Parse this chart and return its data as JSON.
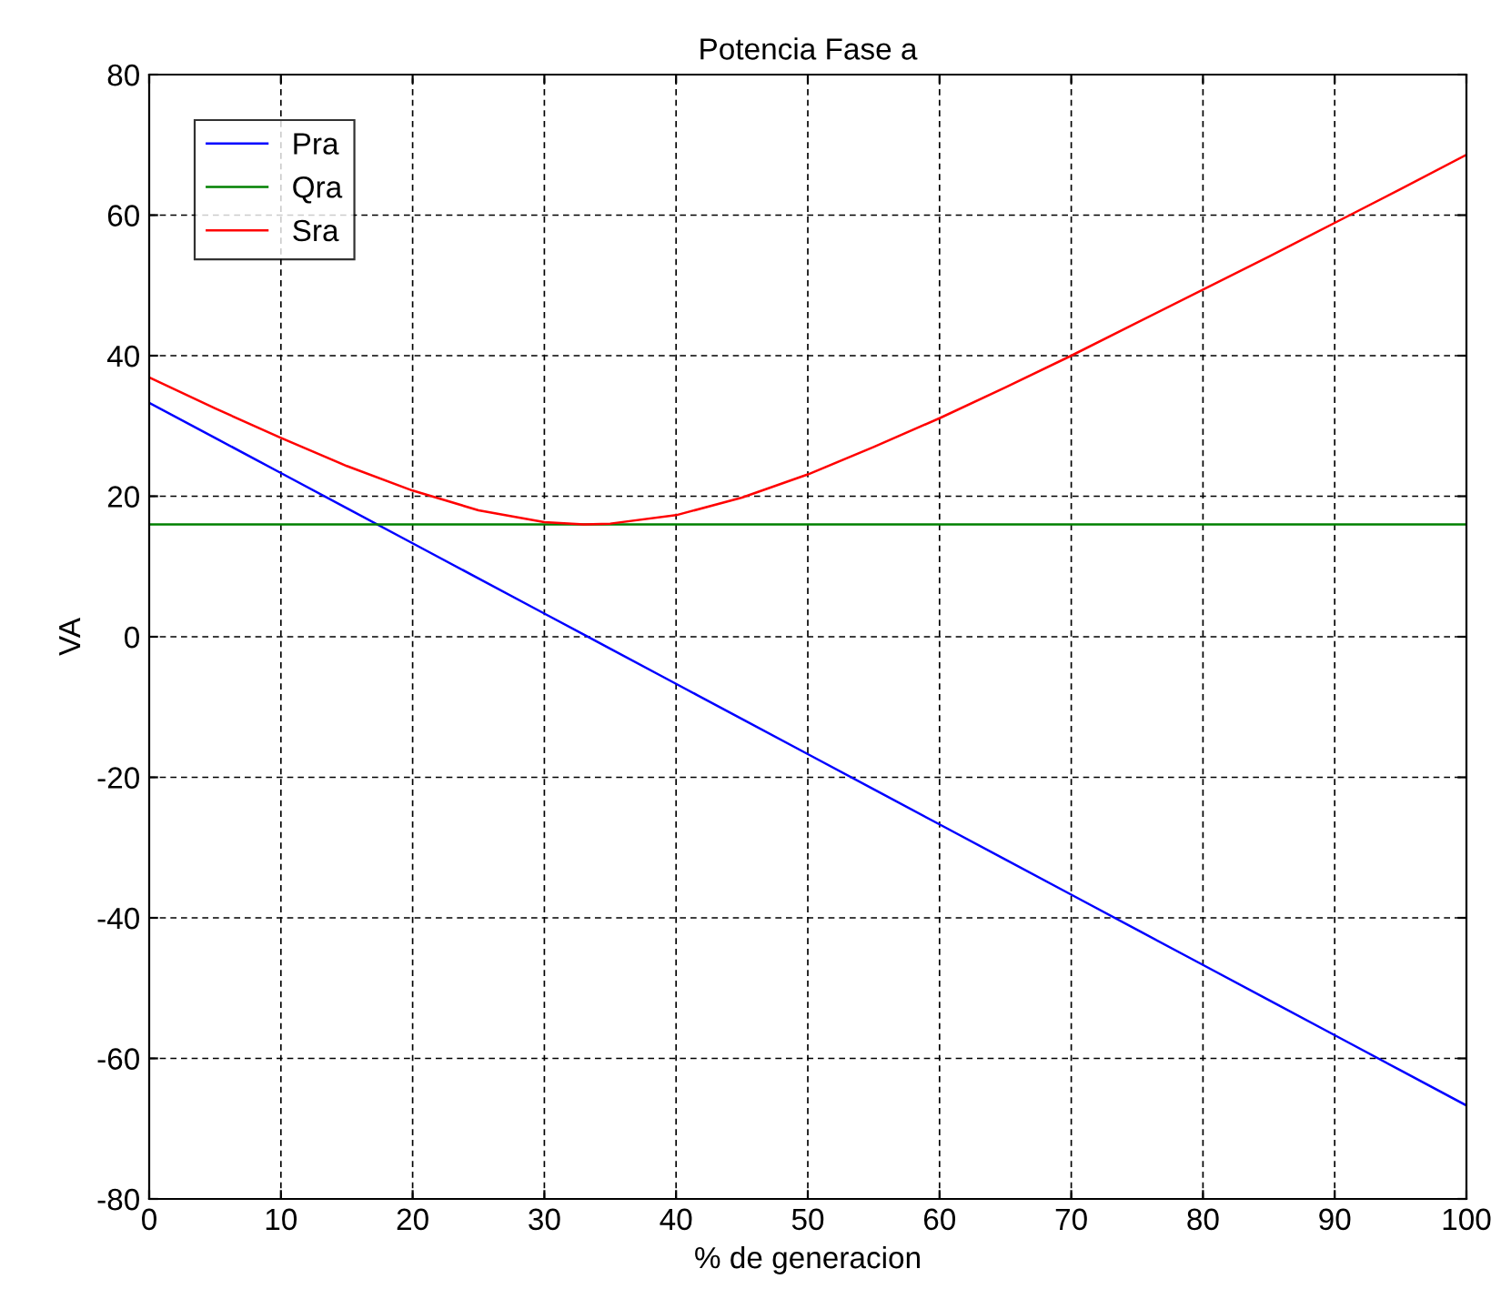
{
  "chart_data": {
    "type": "line",
    "title": "Potencia Fase a",
    "xlabel": "% de generacion",
    "ylabel": "VA",
    "x": [
      0,
      5,
      10,
      15,
      20,
      25,
      30,
      33,
      35,
      40,
      45,
      50,
      55,
      60,
      65,
      70,
      75,
      80,
      85,
      90,
      95,
      100
    ],
    "series": [
      {
        "name": "Pra",
        "color": "#0000ff",
        "values": [
          33.3,
          28.3,
          23.3,
          18.3,
          13.3,
          8.3,
          3.3,
          0.3,
          -1.7,
          -6.7,
          -11.7,
          -16.7,
          -21.7,
          -26.7,
          -31.7,
          -36.7,
          -41.7,
          -46.7,
          -51.7,
          -56.7,
          -61.7,
          -66.7
        ]
      },
      {
        "name": "Qra",
        "color": "#008000",
        "values": [
          16,
          16,
          16,
          16,
          16,
          16,
          16,
          16,
          16,
          16,
          16,
          16,
          16,
          16,
          16,
          16,
          16,
          16,
          16,
          16,
          16,
          16
        ]
      },
      {
        "name": "Sra",
        "color": "#ff0000",
        "values": [
          36.9,
          32.5,
          28.3,
          24.3,
          20.8,
          18.0,
          16.3,
          16.0,
          16.1,
          17.3,
          19.8,
          23.1,
          27.0,
          31.1,
          35.5,
          40.0,
          44.7,
          49.4,
          54.1,
          58.9,
          63.7,
          68.6
        ]
      }
    ],
    "xlim": [
      0,
      100
    ],
    "xticks": [
      0,
      10,
      20,
      30,
      40,
      50,
      60,
      70,
      80,
      90,
      100
    ],
    "ylim": [
      -80,
      80
    ],
    "yticks": [
      -80,
      -60,
      -40,
      -20,
      0,
      20,
      40,
      60,
      80
    ],
    "grid": true,
    "legend": "top left",
    "marker": "none",
    "line_style": "solid"
  }
}
